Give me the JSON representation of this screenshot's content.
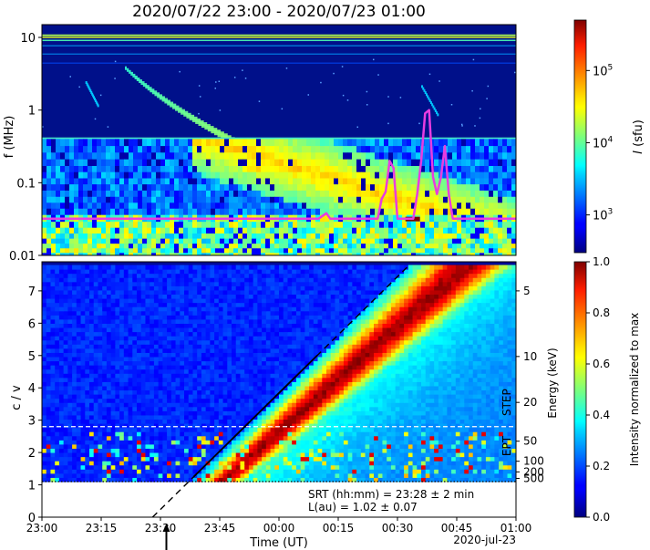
{
  "figure": {
    "title": "2020/07/22 23:00 - 2020/07/23 01:00"
  },
  "chart_data": [
    {
      "type": "heatmap",
      "panel": "top",
      "title": "2020/07/22 23:00 - 2020/07/23 01:00",
      "ylabel": "f (MHz)",
      "yscale": "log",
      "ylim": [
        0.01,
        15
      ],
      "y_ticks": [
        {
          "value": 10,
          "label": "10"
        },
        {
          "value": 1,
          "label": "1"
        },
        {
          "value": 0.1,
          "label": "0.1"
        },
        {
          "value": 0.01,
          "label": "0.01"
        }
      ],
      "xlim_minutes_after_2300": [
        0,
        120
      ],
      "colorbar": {
        "label_prefix": "I",
        "label_suffix": " (sfu)",
        "scale": "log",
        "range": [
          300,
          500000
        ],
        "ticks": [
          {
            "value": 1000,
            "base": "10",
            "exp": "3"
          },
          {
            "value": 10000,
            "base": "10",
            "exp": "4"
          },
          {
            "value": 100000,
            "base": "10",
            "exp": "5"
          }
        ],
        "colormap": "jet"
      },
      "series": [
        {
          "type": "line",
          "color": "#e83ce0",
          "x_minutes_after_2300": [
            0,
            60,
            70,
            72,
            73,
            75,
            85,
            86,
            87,
            87.5,
            88,
            89,
            90,
            94,
            95,
            96,
            97,
            98,
            99,
            100,
            101,
            102,
            103,
            104,
            110,
            120
          ],
          "f_mhz": [
            0.032,
            0.032,
            0.032,
            0.038,
            0.032,
            0.032,
            0.032,
            0.06,
            0.075,
            0.12,
            0.2,
            0.16,
            0.032,
            0.032,
            0.07,
            0.2,
            0.9,
            1.0,
            0.12,
            0.07,
            0.12,
            0.32,
            0.07,
            0.032,
            0.032,
            0.032
          ]
        }
      ]
    },
    {
      "type": "heatmap",
      "panel": "bottom",
      "ylabel": "c / v",
      "xlabel": "Time (UT)",
      "ylim": [
        0,
        7.9
      ],
      "y_ticks": [
        0,
        1,
        2,
        3,
        4,
        5,
        6,
        7
      ],
      "x_ticks": [
        {
          "minutes": 0,
          "label": "23:00"
        },
        {
          "minutes": 15,
          "label": "23:15"
        },
        {
          "minutes": 30,
          "label": "23:30"
        },
        {
          "minutes": 45,
          "label": "23:45"
        },
        {
          "minutes": 60,
          "label": "00:00"
        },
        {
          "minutes": 75,
          "label": "00:15"
        },
        {
          "minutes": 90,
          "label": "00:30"
        },
        {
          "minutes": 105,
          "label": "00:45"
        },
        {
          "minutes": 120,
          "label": "01:00"
        }
      ],
      "date_label": "2020-jul-23",
      "right_axis": {
        "label": "Energy (keV)",
        "ticks": [
          {
            "cv": 7.0,
            "label": "5"
          },
          {
            "cv": 4.97,
            "label": "10"
          },
          {
            "cv": 3.55,
            "label": "20"
          },
          {
            "cv": 2.35,
            "label": "50"
          },
          {
            "cv": 1.73,
            "label": "100"
          },
          {
            "cv": 1.4,
            "label": "200"
          },
          {
            "cv": 1.2,
            "label": "500"
          }
        ]
      },
      "instrument_labels": {
        "upper": "STEP",
        "lower": "EPT",
        "boundary_cv": 2.8
      },
      "energy_lower_cutoff_cv": 1.1,
      "colorbar": {
        "label": "Intensity normalized to max",
        "range": [
          0,
          1
        ],
        "ticks": [
          0.0,
          0.2,
          0.4,
          0.6,
          0.8,
          1.0
        ],
        "colormap": "jet"
      },
      "velocity_dispersion_fit": {
        "x_minutes_at_cv0": 28,
        "x_minutes_at_cv7_8": 93,
        "solid_from_cv": 1.25,
        "solid_to_cv": 5.0
      },
      "srt_marker_minutes": 31.5,
      "annotations": [
        "SRT (hh:mm) = 23:28 ± 2 min",
        "L(au) = 1.02 ± 0.07"
      ]
    }
  ]
}
